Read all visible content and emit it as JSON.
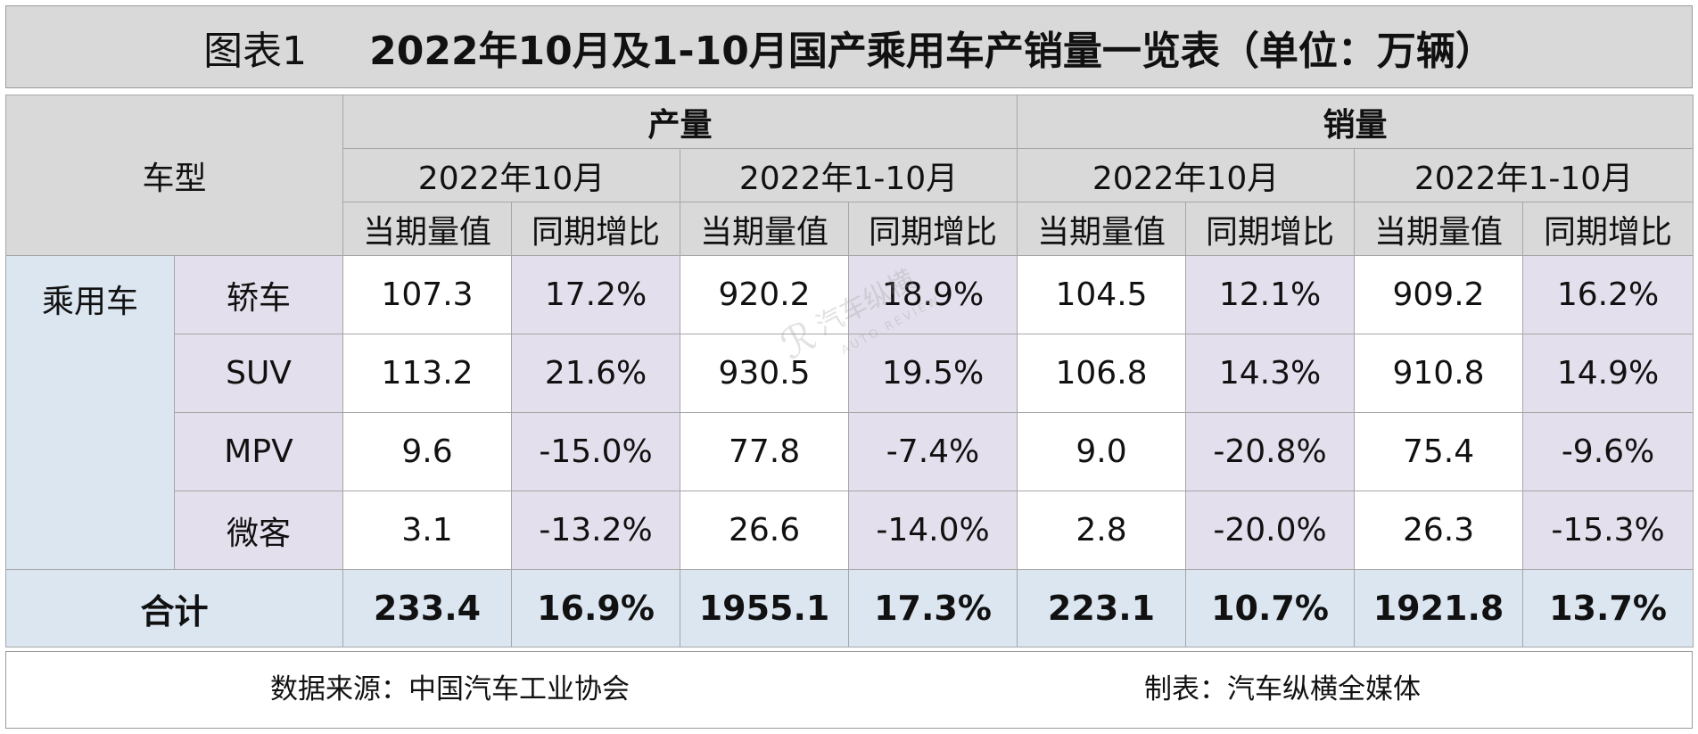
{
  "title": {
    "label": "图表1",
    "text": "2022年10月及1-10月国产乘用车产销量一览表（单位：万辆）"
  },
  "header": {
    "vehicle_type": "车型",
    "production": "产量",
    "sales": "销量",
    "period_month": "2022年10月",
    "period_ytd": "2022年1-10月",
    "current_value": "当期量值",
    "yoy": "同期增比"
  },
  "category": "乘用车",
  "rows": [
    {
      "name": "轿车",
      "values": [
        "107.3",
        "17.2%",
        "920.2",
        "18.9%",
        "104.5",
        "12.1%",
        "909.2",
        "16.2%"
      ]
    },
    {
      "name": "SUV",
      "values": [
        "113.2",
        "21.6%",
        "930.5",
        "19.5%",
        "106.8",
        "14.3%",
        "910.8",
        "14.9%"
      ]
    },
    {
      "name": "MPV",
      "values": [
        "9.6",
        "-15.0%",
        "77.8",
        "-7.4%",
        "9.0",
        "-20.8%",
        "75.4",
        "-9.6%"
      ]
    },
    {
      "name": "微客",
      "values": [
        "3.1",
        "-13.2%",
        "26.6",
        "-14.0%",
        "2.8",
        "-20.0%",
        "26.3",
        "-15.3%"
      ]
    }
  ],
  "total": {
    "name": "合计",
    "values": [
      "233.4",
      "16.9%",
      "1955.1",
      "17.3%",
      "223.1",
      "10.7%",
      "1921.8",
      "13.7%"
    ]
  },
  "footer": {
    "source": "数据来源：中国汽车工业协会",
    "maker": "制表：汽车纵横全媒体"
  },
  "watermark": {
    "main": "汽车纵横",
    "sub": "AUTO REVIEW",
    "icon": "logo-icon"
  },
  "colors": {
    "header_gray": "#d9d9d9",
    "light_blue": "#dce6f1",
    "light_purple": "#e4dfec"
  }
}
